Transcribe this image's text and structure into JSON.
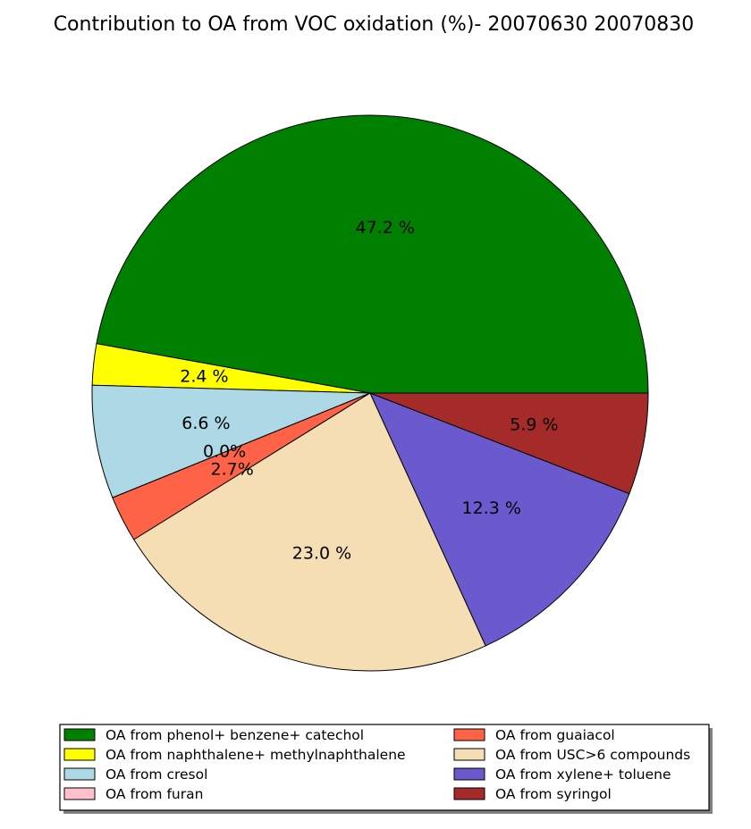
{
  "chart_data": {
    "type": "pie",
    "title": "Contribution to OA from VOC oxidation (%)- 20070630 20070830",
    "slices": [
      {
        "label": "OA from phenol+ benzene+ catechol",
        "value": 47.2,
        "pct_label": "47.2 %",
        "color": "#008000"
      },
      {
        "label": "OA from naphthalene+ methylnaphthalene",
        "value": 2.4,
        "pct_label": "2.4 %",
        "color": "#ffff00"
      },
      {
        "label": "OA from cresol",
        "value": 6.6,
        "pct_label": "6.6 %",
        "color": "#add8e6"
      },
      {
        "label": "OA from furan",
        "value": 0.0,
        "pct_label": "0.0%",
        "color": "#ffc0cb"
      },
      {
        "label": "OA from guaiacol",
        "value": 2.7,
        "pct_label": "2.7%",
        "color": "#ff6347"
      },
      {
        "label": "OA from USC>6 compounds",
        "value": 23.0,
        "pct_label": "23.0 %",
        "color": "#f5deb3"
      },
      {
        "label": "OA from xylene+ toluene",
        "value": 12.3,
        "pct_label": "12.3 %",
        "color": "#6a5acd"
      },
      {
        "label": "OA from syringol",
        "value": 5.9,
        "pct_label": "5.9 %",
        "color": "#a52a2a"
      }
    ],
    "legend_position": "bottom",
    "legend_columns": 2
  }
}
